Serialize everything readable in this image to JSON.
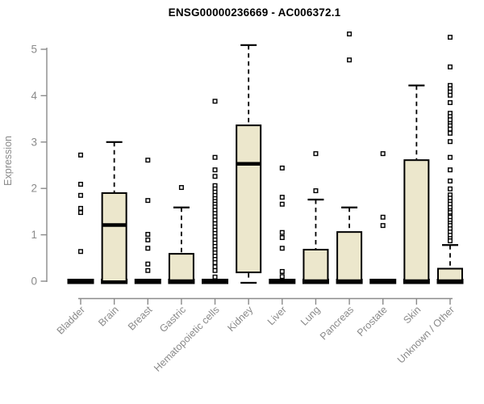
{
  "chart_data": {
    "type": "boxplot",
    "title": "ENSG00000236669 - AC006372.1",
    "xlabel": "",
    "ylabel": "Expression",
    "ylim": [
      0,
      5
    ],
    "yticks": [
      "0",
      "1",
      "2",
      "3",
      "4",
      "5"
    ],
    "grid": false,
    "legend": null,
    "categories": [
      "Bladder",
      "Brain",
      "Breast",
      "Gastric",
      "Hematopoietic cells",
      "Kidney",
      "Liver",
      "Lung",
      "Pancreas",
      "Prostate",
      "Skin",
      "Unknown / Other"
    ],
    "boxes": [
      {
        "category": "Bladder",
        "low": 0,
        "q1": 0,
        "median": 0,
        "q3": 0,
        "high": 0,
        "outliers": [
          2.72,
          2.09,
          1.85,
          1.57,
          1.48,
          0.64
        ]
      },
      {
        "category": "Brain",
        "low": 0,
        "q1": 0,
        "median": 1.21,
        "q3": 1.9,
        "high": 3.0,
        "outliers": []
      },
      {
        "category": "Breast",
        "low": 0,
        "q1": 0,
        "median": 0,
        "q3": 0,
        "high": 0,
        "outliers": [
          2.61,
          1.74,
          1.01,
          0.89,
          0.71,
          0.37,
          0.23
        ]
      },
      {
        "category": "Gastric",
        "low": 0,
        "q1": 0,
        "median": 0,
        "q3": 0.59,
        "high": 1.59,
        "outliers": [
          2.02
        ]
      },
      {
        "category": "Hematopoietic cells",
        "low": 0,
        "q1": 0,
        "median": 0,
        "q3": 0,
        "high": 0,
        "outliers": [
          3.88,
          2.67,
          2.4,
          2.26,
          2.06,
          1.99,
          1.92,
          1.85,
          1.78,
          1.72,
          1.66,
          1.6,
          1.53,
          1.46,
          1.39,
          1.32,
          1.24,
          1.17,
          1.1,
          1.03,
          0.96,
          0.89,
          0.82,
          0.75,
          0.68,
          0.61,
          0.54,
          0.47,
          0.4,
          0.31,
          0.23,
          0.09
        ]
      },
      {
        "category": "Kidney",
        "low": 0,
        "q1": 0.19,
        "median": 2.53,
        "q3": 3.36,
        "high": 5.09,
        "outliers": []
      },
      {
        "category": "Liver",
        "low": 0,
        "q1": 0,
        "median": 0,
        "q3": 0,
        "high": 0,
        "outliers": [
          2.44,
          1.81,
          1.66,
          1.05,
          0.94,
          0.71,
          0.21,
          0.1
        ]
      },
      {
        "category": "Lung",
        "low": 0,
        "q1": 0,
        "median": 0,
        "q3": 0.68,
        "high": 1.76,
        "outliers": [
          2.75,
          1.95
        ]
      },
      {
        "category": "Pancreas",
        "low": 0,
        "q1": 0,
        "median": 0,
        "q3": 1.06,
        "high": 1.59,
        "outliers": [
          5.33,
          4.77
        ]
      },
      {
        "category": "Prostate",
        "low": 0,
        "q1": 0,
        "median": 0,
        "q3": 0,
        "high": 0,
        "outliers": [
          2.75,
          1.38,
          1.2
        ]
      },
      {
        "category": "Skin",
        "low": 0,
        "q1": 0,
        "median": 0,
        "q3": 2.61,
        "high": 4.22,
        "outliers": []
      },
      {
        "category": "Unknown / Other",
        "low": 0,
        "q1": 0,
        "median": 0,
        "q3": 0.27,
        "high": 0.78,
        "outliers": [
          5.26,
          4.62,
          4.22,
          4.15,
          4.08,
          4.01,
          3.85,
          3.62,
          3.55,
          3.48,
          3.4,
          3.35,
          3.28,
          3.19,
          3.01,
          2.67,
          2.4,
          2.16,
          1.99,
          1.86,
          1.79,
          1.72,
          1.66,
          1.59,
          1.52,
          1.48,
          1.41,
          1.38,
          1.31,
          1.25,
          1.2,
          1.13,
          1.06,
          0.99,
          0.92,
          0.87
        ]
      }
    ],
    "colors": {
      "box_fill": "#ece7cc",
      "box_stroke": "#000000",
      "median": "#000000",
      "whisker": "#000000",
      "outlier_stroke": "#000000",
      "outlier_fill": "#ffffff",
      "axis": "#8a8a8a",
      "tick_text": "#8a8a8a",
      "title_text": "#000000",
      "background": "#ffffff"
    }
  }
}
